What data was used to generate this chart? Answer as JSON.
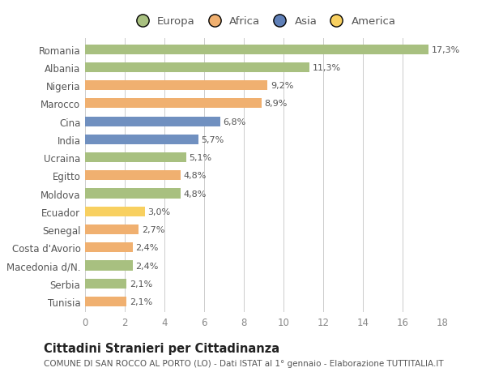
{
  "countries": [
    "Romania",
    "Albania",
    "Nigeria",
    "Marocco",
    "Cina",
    "India",
    "Ucraina",
    "Egitto",
    "Moldova",
    "Ecuador",
    "Senegal",
    "Costa d'Avorio",
    "Macedonia d/N.",
    "Serbia",
    "Tunisia"
  ],
  "values": [
    17.3,
    11.3,
    9.2,
    8.9,
    6.8,
    5.7,
    5.1,
    4.8,
    4.8,
    3.0,
    2.7,
    2.4,
    2.4,
    2.1,
    2.1
  ],
  "labels": [
    "17,3%",
    "11,3%",
    "9,2%",
    "8,9%",
    "6,8%",
    "5,7%",
    "5,1%",
    "4,8%",
    "4,8%",
    "3,0%",
    "2,7%",
    "2,4%",
    "2,4%",
    "2,1%",
    "2,1%"
  ],
  "colors": [
    "#a8c080",
    "#a8c080",
    "#f0b070",
    "#f0b070",
    "#7090c0",
    "#7090c0",
    "#a8c080",
    "#f0b070",
    "#a8c080",
    "#f8d060",
    "#f0b070",
    "#f0b070",
    "#a8c080",
    "#a8c080",
    "#f0b070"
  ],
  "legend": [
    {
      "label": "Europa",
      "color": "#a8c080"
    },
    {
      "label": "Africa",
      "color": "#f0b070"
    },
    {
      "label": "Asia",
      "color": "#6080b8"
    },
    {
      "label": "America",
      "color": "#f8d060"
    }
  ],
  "xlim": [
    0,
    18
  ],
  "xticks": [
    0,
    2,
    4,
    6,
    8,
    10,
    12,
    14,
    16,
    18
  ],
  "title": "Cittadini Stranieri per Cittadinanza",
  "subtitle": "COMUNE DI SAN ROCCO AL PORTO (LO) - Dati ISTAT al 1° gennaio - Elaborazione TUTTITALIA.IT",
  "bg_color": "#ffffff",
  "grid_color": "#cccccc",
  "label_fontsize": 8,
  "ytick_fontsize": 8.5,
  "xtick_fontsize": 8.5,
  "title_fontsize": 10.5,
  "subtitle_fontsize": 7.5,
  "legend_fontsize": 9.5,
  "bar_height": 0.55
}
